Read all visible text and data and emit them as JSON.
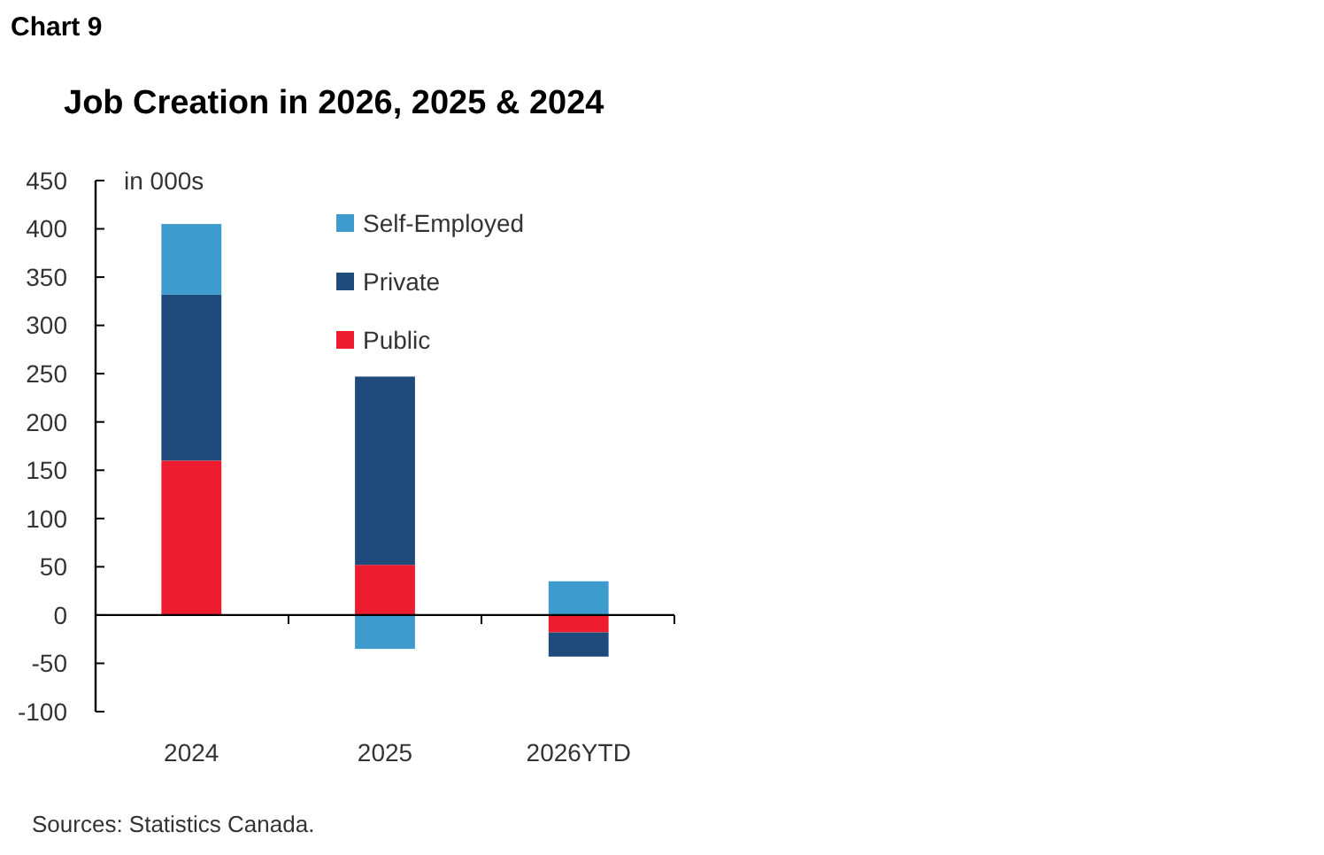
{
  "chart_data": {
    "type": "bar",
    "title": "Job Creation in 2026, 2025 & 2024",
    "ylabel": "in 000s",
    "annotations": [
      "Chart 9",
      "Sources: Statistics Canada."
    ],
    "categories": [
      "2024",
      "2025",
      "2026YTD"
    ],
    "stacked": true,
    "series": [
      {
        "name": "Public",
        "color": "#ed1c2e",
        "values": [
          160,
          52,
          -18
        ]
      },
      {
        "name": "Private",
        "color": "#1f4a7c",
        "values": [
          172,
          195,
          -25
        ]
      },
      {
        "name": "Self-Employed",
        "color": "#3d9bce",
        "values": [
          73,
          -35,
          35
        ]
      }
    ],
    "ylim": [
      -100,
      450
    ],
    "yticks": [
      -100,
      -50,
      0,
      50,
      100,
      150,
      200,
      250,
      300,
      350,
      400,
      450
    ],
    "legend": "top right"
  }
}
